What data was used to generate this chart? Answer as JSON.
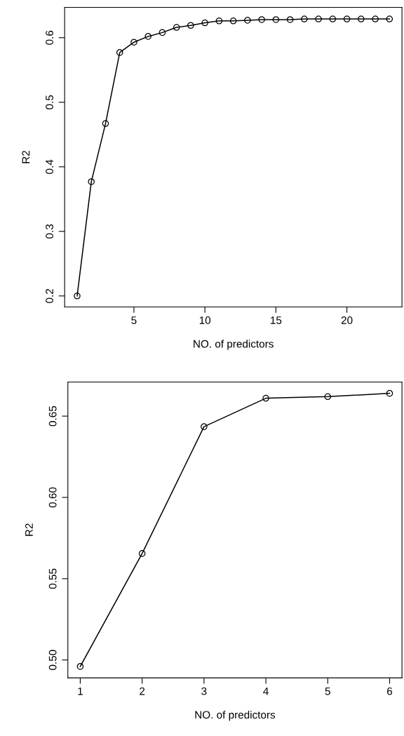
{
  "chart_data": [
    {
      "type": "line",
      "xlabel": "NO. of predictors",
      "ylabel": "R2",
      "marker": "circle",
      "grid": false,
      "x": [
        1,
        2,
        3,
        4,
        5,
        6,
        7,
        8,
        9,
        10,
        11,
        12,
        13,
        14,
        15,
        16,
        17,
        18,
        19,
        20,
        21,
        22,
        23
      ],
      "series": [
        {
          "color": "#000000",
          "values": [
            0.2,
            0.377,
            0.467,
            0.577,
            0.593,
            0.602,
            0.608,
            0.616,
            0.619,
            0.623,
            0.626,
            0.626,
            0.627,
            0.628,
            0.628,
            0.628,
            0.629,
            0.629,
            0.629,
            0.629,
            0.629,
            0.629,
            0.629
          ]
        }
      ],
      "xlim": [
        0.12,
        23.88
      ],
      "xticks": [
        5,
        10,
        15,
        20
      ],
      "ylim": [
        0.183,
        0.647
      ],
      "yticks": [
        0.2,
        0.3,
        0.4,
        0.5,
        0.6
      ]
    },
    {
      "type": "line",
      "xlabel": "NO. of predictors",
      "ylabel": "R2",
      "marker": "circle",
      "grid": false,
      "x": [
        1,
        2,
        3,
        4,
        5,
        6
      ],
      "series": [
        {
          "color": "#000000",
          "values": [
            0.496,
            0.5655,
            0.6435,
            0.661,
            0.662,
            0.664
          ]
        }
      ],
      "xlim": [
        0.8,
        6.2
      ],
      "xticks": [
        1,
        2,
        3,
        4,
        5,
        6
      ],
      "ylim": [
        0.489,
        0.671
      ],
      "yticks": [
        {
          "value": 0.5,
          "label": "0.50"
        },
        {
          "value": 0.55,
          "label": "0.55"
        },
        {
          "value": 0.6,
          "label": "0.60"
        },
        {
          "value": 0.65,
          "label": "0.65"
        }
      ]
    }
  ]
}
